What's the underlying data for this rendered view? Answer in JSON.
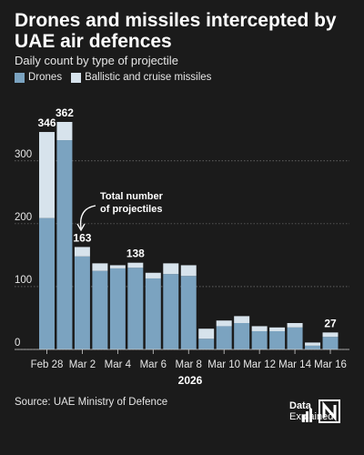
{
  "title": "Drones and missiles intercepted by UAE air defences",
  "subtitle": "Daily count by type of projectile",
  "legend": [
    {
      "label": "Drones",
      "color": "#7ba3c0"
    },
    {
      "label": "Ballistic and cruise missiles",
      "color": "#d7e3ec"
    }
  ],
  "annotation": "Total number of projectiles",
  "source": "Source: UAE Ministry of Defence",
  "brand": {
    "line1": "Data",
    "line2": "Explained",
    "mark": "N"
  },
  "chart_data": {
    "type": "bar",
    "stacked": true,
    "categories": [
      "Feb 28",
      "Mar 1",
      "Mar 2",
      "Mar 3",
      "Mar 4",
      "Mar 5",
      "Mar 6",
      "Mar 7",
      "Mar 8",
      "Mar 9",
      "Mar 10",
      "Mar 11",
      "Mar 12",
      "Mar 13",
      "Mar 14",
      "Mar 15",
      "Mar 16"
    ],
    "series": [
      {
        "name": "Drones",
        "values": [
          209,
          333,
          148,
          125,
          129,
          130,
          113,
          120,
          117,
          17,
          37,
          42,
          29,
          29,
          35,
          6,
          20
        ]
      },
      {
        "name": "Ballistic and cruise missiles",
        "values": [
          137,
          29,
          15,
          12,
          5,
          8,
          9,
          17,
          17,
          16,
          9,
          11,
          8,
          6,
          7,
          5,
          7
        ]
      }
    ],
    "tick_labels": [
      "Feb 28",
      "Mar 2",
      "Mar 4",
      "Mar 6",
      "Mar 8",
      "Mar 10",
      "Mar 12",
      "Mar 14",
      "Mar 16"
    ],
    "total_labels": [
      {
        "category": "Feb 28",
        "value": "346"
      },
      {
        "category": "Mar 1",
        "value": "362"
      },
      {
        "category": "Mar 2",
        "value": "163"
      },
      {
        "category": "Mar 5",
        "value": "138"
      },
      {
        "category": "Mar 16",
        "value": "27"
      }
    ],
    "yticks": [
      0,
      100,
      200,
      300
    ],
    "ylim": [
      0,
      362
    ],
    "xlabel": "2026",
    "grid": true
  }
}
